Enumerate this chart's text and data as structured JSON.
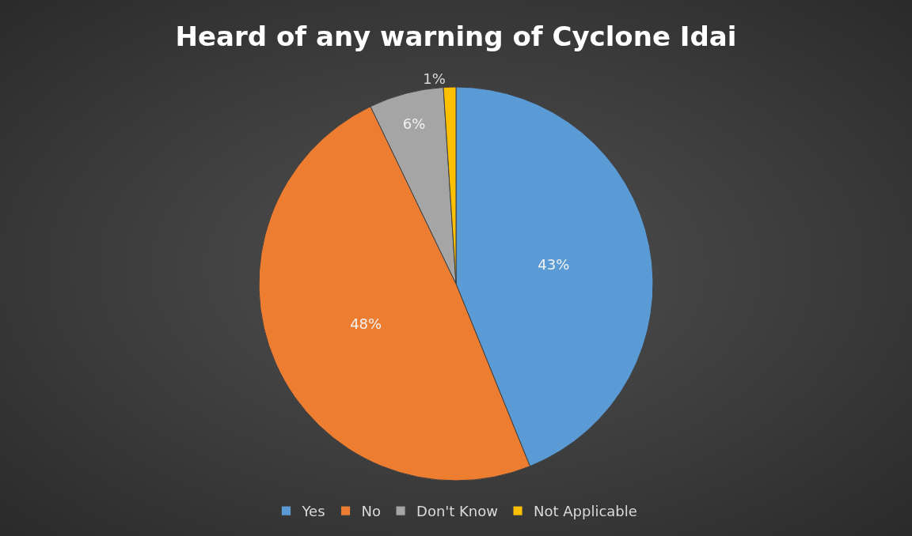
{
  "chart_data": {
    "type": "pie",
    "title": "Heard of any warning of Cyclone Idai",
    "categories": [
      "Yes",
      "No",
      "Don't Know",
      "Not Applicable"
    ],
    "values": [
      43,
      48,
      6,
      1
    ],
    "value_labels": [
      "43%",
      "48%",
      "6%",
      "1%"
    ],
    "colors": [
      "#5b9bd5",
      "#ed7d31",
      "#a5a5a5",
      "#ffc000"
    ],
    "legend": "bottom"
  }
}
